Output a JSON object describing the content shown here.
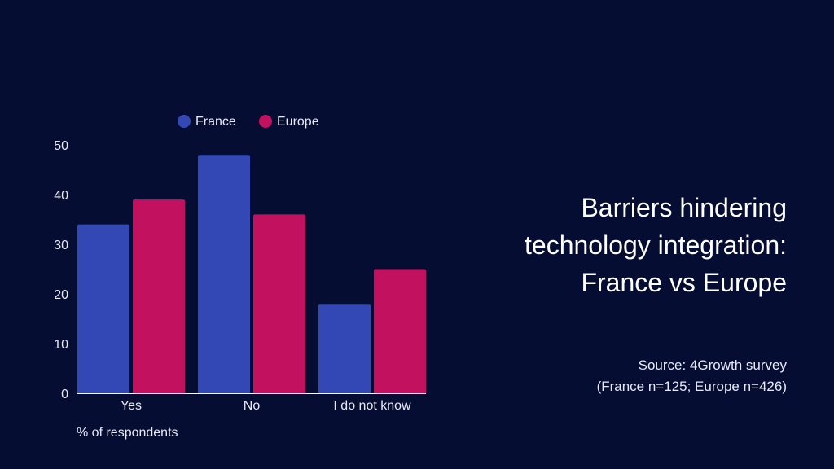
{
  "title_lines": [
    "Barriers hindering",
    "technology integration:",
    "France vs Europe"
  ],
  "source_lines": [
    "Source: 4Growth survey",
    "(France n=125; Europe n=426)"
  ],
  "chart_data": {
    "type": "bar",
    "categories": [
      "Yes",
      "No",
      "I do not know"
    ],
    "series": [
      {
        "name": "France",
        "color": "#3347b5",
        "values": [
          34,
          48,
          18
        ]
      },
      {
        "name": "Europe",
        "color": "#c2125f",
        "values": [
          39,
          36,
          25
        ]
      }
    ],
    "ylim": [
      0,
      50
    ],
    "yticks": [
      0,
      10,
      20,
      30,
      40,
      50
    ],
    "ylabel": "% of respondents",
    "legend_position": "top",
    "grid": false
  }
}
